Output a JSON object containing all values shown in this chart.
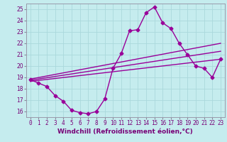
{
  "xlabel": "Windchill (Refroidissement éolien,°C)",
  "background_color": "#c5ecee",
  "grid_color": "#aad8dc",
  "line_color": "#990099",
  "ylim": [
    15.5,
    25.5
  ],
  "xlim": [
    -0.5,
    23.5
  ],
  "yticks": [
    16,
    17,
    18,
    19,
    20,
    21,
    22,
    23,
    24,
    25
  ],
  "xticks": [
    0,
    1,
    2,
    3,
    4,
    5,
    6,
    7,
    8,
    9,
    10,
    11,
    12,
    13,
    14,
    15,
    16,
    17,
    18,
    19,
    20,
    21,
    22,
    23
  ],
  "main_line_x": [
    0,
    1,
    2,
    3,
    4,
    5,
    6,
    7,
    8,
    9,
    10,
    11,
    12,
    13,
    14,
    15,
    16,
    17,
    18,
    19,
    20,
    21,
    22,
    23
  ],
  "main_line_y": [
    18.8,
    18.5,
    18.2,
    17.4,
    16.9,
    16.1,
    15.9,
    15.8,
    16.0,
    17.1,
    19.8,
    21.1,
    23.1,
    23.2,
    24.7,
    25.2,
    23.8,
    23.3,
    22.0,
    21.0,
    20.0,
    19.8,
    19.0,
    20.6
  ],
  "trend1_x": [
    0,
    23
  ],
  "trend1_y": [
    18.85,
    22.0
  ],
  "trend2_x": [
    0,
    23
  ],
  "trend2_y": [
    18.75,
    21.3
  ],
  "trend3_x": [
    0,
    23
  ],
  "trend3_y": [
    18.65,
    20.6
  ],
  "marker_size": 2.5,
  "line_width": 1.0,
  "tick_fontsize": 5.5,
  "label_fontsize": 6.5
}
